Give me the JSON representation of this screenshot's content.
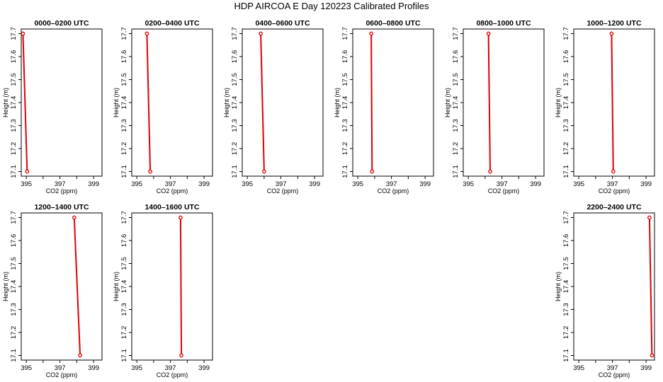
{
  "title": "HDP AIRCOA E  Day 120223  Calibrated Profiles",
  "colors": {
    "series": "#e00000",
    "axes": "#000000"
  },
  "chart_data": [
    {
      "type": "line",
      "title": "0000–0200 UTC",
      "xlabel": "CO2 (ppm)",
      "ylabel": "Height (m)",
      "xlim": [
        394.7,
        399.5
      ],
      "ylim": [
        17.08,
        17.72
      ],
      "xticks": [
        "395",
        "397",
        "399"
      ],
      "yticks": [
        "17.1",
        "17.2",
        "17.3",
        "17.4",
        "17.5",
        "17.6",
        "17.7"
      ],
      "series": [
        {
          "x": [
            394.8,
            395.05
          ],
          "y": [
            17.7,
            17.1
          ]
        }
      ]
    },
    {
      "type": "line",
      "title": "0200–0400 UTC",
      "xlabel": "CO2 (ppm)",
      "ylabel": "Height (m)",
      "xlim": [
        394.7,
        399.5
      ],
      "ylim": [
        17.08,
        17.72
      ],
      "xticks": [
        "395",
        "397",
        "399"
      ],
      "yticks": [
        "17.1",
        "17.2",
        "17.3",
        "17.4",
        "17.5",
        "17.6",
        "17.7"
      ],
      "series": [
        {
          "x": [
            395.6,
            395.8
          ],
          "y": [
            17.7,
            17.1
          ]
        }
      ]
    },
    {
      "type": "line",
      "title": "0400–0600 UTC",
      "xlabel": "CO2 (ppm)",
      "ylabel": "Height (m)",
      "xlim": [
        394.7,
        399.5
      ],
      "ylim": [
        17.08,
        17.72
      ],
      "xticks": [
        "395",
        "397",
        "399"
      ],
      "yticks": [
        "17.1",
        "17.2",
        "17.3",
        "17.4",
        "17.5",
        "17.6",
        "17.7"
      ],
      "series": [
        {
          "x": [
            395.8,
            396.0
          ],
          "y": [
            17.7,
            17.1
          ]
        }
      ]
    },
    {
      "type": "line",
      "title": "0600–0800 UTC",
      "xlabel": "CO2 (ppm)",
      "ylabel": "Height (m)",
      "xlim": [
        394.7,
        399.5
      ],
      "ylim": [
        17.08,
        17.72
      ],
      "xticks": [
        "395",
        "397",
        "399"
      ],
      "yticks": [
        "17.1",
        "17.2",
        "17.3",
        "17.4",
        "17.5",
        "17.6",
        "17.7"
      ],
      "series": [
        {
          "x": [
            395.8,
            395.85
          ],
          "y": [
            17.7,
            17.1
          ]
        }
      ]
    },
    {
      "type": "line",
      "title": "0800–1000 UTC",
      "xlabel": "CO2 (ppm)",
      "ylabel": "Height (m)",
      "xlim": [
        394.7,
        399.5
      ],
      "ylim": [
        17.08,
        17.72
      ],
      "xticks": [
        "395",
        "397",
        "399"
      ],
      "yticks": [
        "17.1",
        "17.2",
        "17.3",
        "17.4",
        "17.5",
        "17.6",
        "17.7"
      ],
      "series": [
        {
          "x": [
            396.2,
            396.3
          ],
          "y": [
            17.7,
            17.1
          ]
        }
      ]
    },
    {
      "type": "line",
      "title": "1000–1200 UTC",
      "xlabel": "CO2 (ppm)",
      "ylabel": "Height (m)",
      "xlim": [
        394.7,
        399.5
      ],
      "ylim": [
        17.08,
        17.72
      ],
      "xticks": [
        "395",
        "397",
        "399"
      ],
      "yticks": [
        "17.1",
        "17.2",
        "17.3",
        "17.4",
        "17.5",
        "17.6",
        "17.7"
      ],
      "series": [
        {
          "x": [
            396.95,
            397.05
          ],
          "y": [
            17.7,
            17.1
          ]
        }
      ]
    },
    {
      "type": "line",
      "title": "1200–1400 UTC",
      "xlabel": "CO2 (ppm)",
      "ylabel": "Height (m)",
      "xlim": [
        394.7,
        399.5
      ],
      "ylim": [
        17.08,
        17.72
      ],
      "xticks": [
        "395",
        "397",
        "399"
      ],
      "yticks": [
        "17.1",
        "17.2",
        "17.3",
        "17.4",
        "17.5",
        "17.6",
        "17.7"
      ],
      "series": [
        {
          "x": [
            397.85,
            398.2
          ],
          "y": [
            17.7,
            17.1
          ]
        }
      ]
    },
    {
      "type": "line",
      "title": "1400–1600 UTC",
      "xlabel": "CO2 (ppm)",
      "ylabel": "Height (m)",
      "xlim": [
        394.7,
        399.5
      ],
      "ylim": [
        17.08,
        17.72
      ],
      "xticks": [
        "395",
        "397",
        "399"
      ],
      "yticks": [
        "17.1",
        "17.2",
        "17.3",
        "17.4",
        "17.5",
        "17.6",
        "17.7"
      ],
      "series": [
        {
          "x": [
            397.6,
            397.65
          ],
          "y": [
            17.7,
            17.1
          ]
        }
      ]
    },
    {
      "type": "line",
      "title": "2200–2400 UTC",
      "xlabel": "CO2 (ppm)",
      "ylabel": "Height (m)",
      "xlim": [
        394.7,
        399.5
      ],
      "ylim": [
        17.08,
        17.72
      ],
      "xticks": [
        "395",
        "397",
        "399"
      ],
      "yticks": [
        "17.1",
        "17.2",
        "17.3",
        "17.4",
        "17.5",
        "17.6",
        "17.7"
      ],
      "series": [
        {
          "x": [
            399.2,
            399.35
          ],
          "y": [
            17.7,
            17.1
          ]
        }
      ]
    }
  ]
}
